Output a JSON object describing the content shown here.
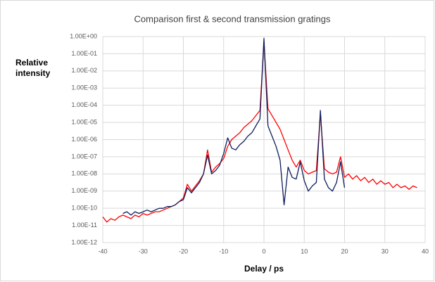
{
  "chart_data": {
    "type": "line",
    "title": "Comparison first & second transmission gratings",
    "y_label": "Relative intensity",
    "x_label": "Delay / ps",
    "ylog": true,
    "grid": true,
    "x": [
      -40,
      -39,
      -38,
      -37,
      -36,
      -35,
      -34,
      -33,
      -32,
      -31,
      -30,
      -29,
      -28,
      -27,
      -26,
      -25,
      -24,
      -23,
      -22,
      -21,
      -20,
      -19,
      -18,
      -17,
      -16,
      -15,
      -14,
      -13,
      -12,
      -11,
      -10,
      -9,
      -8,
      -7,
      -6,
      -5,
      -4,
      -3,
      -2,
      -1,
      0,
      1,
      2,
      3,
      4,
      5,
      6,
      7,
      8,
      9,
      10,
      11,
      12,
      13,
      14,
      15,
      16,
      17,
      18,
      19,
      20,
      21,
      22,
      23,
      24,
      25,
      26,
      27,
      28,
      29,
      30,
      31,
      32,
      33,
      34,
      35,
      36,
      37,
      38
    ],
    "series": [
      {
        "color": "#ff0000",
        "values": [
          3.16e-11,
          1.58e-11,
          2.5e-11,
          2e-11,
          3.16e-11,
          4e-11,
          3.16e-11,
          2.5e-11,
          4e-11,
          3.16e-11,
          5e-11,
          4e-11,
          5e-11,
          6.3e-11,
          6.3e-11,
          7.9e-11,
          1e-10,
          1.26e-10,
          1.58e-10,
          2.5e-10,
          4e-10,
          2.5e-09,
          1e-09,
          2e-09,
          4e-09,
          1e-08,
          2.5e-07,
          1.26e-08,
          2.5e-08,
          4e-08,
          7.9e-08,
          4e-07,
          1e-06,
          1.58e-06,
          2.5e-06,
          5e-06,
          7.9e-06,
          1.26e-05,
          2.5e-05,
          5e-05,
          0.5,
          6.3e-05,
          2.5e-05,
          1e-05,
          4e-06,
          1e-06,
          2.5e-07,
          6.3e-08,
          2.5e-08,
          6.3e-08,
          1.58e-08,
          1e-08,
          1.26e-08,
          1.58e-08,
          3.16e-05,
          2e-08,
          1.26e-08,
          1e-08,
          1.26e-08,
          1e-07,
          6.3e-09,
          1e-08,
          5e-09,
          7.9e-09,
          4e-09,
          6.3e-09,
          3.16e-09,
          5e-09,
          2.5e-09,
          4e-09,
          2.5e-09,
          3.16e-09,
          1.58e-09,
          2.5e-09,
          1.58e-09,
          2e-09,
          1.26e-09,
          2e-09,
          1.58e-09
        ]
      },
      {
        "color": "#0d1e5c",
        "values": [
          null,
          null,
          null,
          null,
          null,
          5e-11,
          6.3e-11,
          4e-11,
          6.3e-11,
          5e-11,
          6.3e-11,
          7.9e-11,
          6.3e-11,
          7.9e-11,
          1e-10,
          1e-10,
          1.26e-10,
          1.26e-10,
          1.58e-10,
          2.5e-10,
          3.16e-10,
          1.58e-09,
          7.9e-10,
          1.58e-09,
          3.16e-09,
          1e-08,
          1.26e-07,
          1e-08,
          1.58e-08,
          3.16e-08,
          1.58e-07,
          1.26e-06,
          3.16e-07,
          2.5e-07,
          5e-07,
          7.9e-07,
          1.58e-06,
          2.5e-06,
          6.3e-06,
          1.58e-05,
          0.79,
          6.3e-06,
          1.58e-06,
          4e-07,
          6.3e-08,
          1.58e-10,
          2.5e-08,
          6.3e-09,
          5e-09,
          5e-08,
          4e-09,
          1e-09,
          2e-09,
          3.16e-09,
          5e-05,
          5e-09,
          1.58e-09,
          1e-09,
          3.16e-09,
          5e-08,
          1.58e-09,
          null,
          null,
          null,
          null,
          null,
          null,
          null,
          null,
          null,
          null,
          null,
          null,
          null,
          null,
          null,
          null,
          null,
          null
        ]
      }
    ],
    "xlim": [
      -40,
      40
    ],
    "xticks": [
      -40,
      -30,
      -20,
      -10,
      0,
      10,
      20,
      30,
      40
    ],
    "ylim": [
      1e-12,
      1
    ],
    "yticks": [
      {
        "value": 1,
        "label": "1.00E+00"
      },
      {
        "value": 0.1,
        "label": "1.00E-01"
      },
      {
        "value": 0.01,
        "label": "1.00E-02"
      },
      {
        "value": 0.001,
        "label": "1.00E-03"
      },
      {
        "value": 0.0001,
        "label": "1.00E-04"
      },
      {
        "value": 1e-05,
        "label": "1.00E-05"
      },
      {
        "value": 1e-06,
        "label": "1.00E-06"
      },
      {
        "value": 1e-07,
        "label": "1.00E-07"
      },
      {
        "value": 1e-08,
        "label": "1.00E-08"
      },
      {
        "value": 1e-09,
        "label": "1.00E-09"
      },
      {
        "value": 1e-10,
        "label": "1.00E-10"
      },
      {
        "value": 1e-11,
        "label": "1.00E-11"
      },
      {
        "value": 1e-12,
        "label": "1.00E-12"
      }
    ]
  }
}
